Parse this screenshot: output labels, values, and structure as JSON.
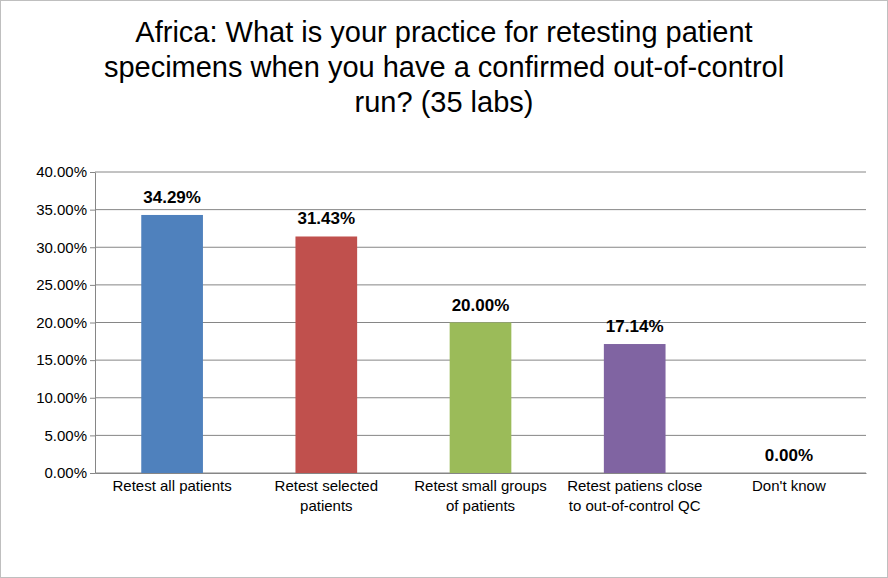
{
  "chart_data": {
    "type": "bar",
    "title": "Africa: What is your practice for retesting patient specimens when you have a confirmed out-of-control run? (35 labs)",
    "categories": [
      "Retest all patients",
      "Retest selected patients",
      "Retest small groups of patients",
      "Retest patiens close to out-of-control QC",
      "Don't know"
    ],
    "values": [
      34.29,
      31.43,
      20.0,
      17.14,
      0.0
    ],
    "value_labels": [
      "34.29%",
      "31.43%",
      "20.00%",
      "17.14%",
      "0.00%"
    ],
    "colors": [
      "#4f81bd",
      "#c0504d",
      "#9bbb59",
      "#8064a2",
      "#4bacc6"
    ],
    "ylim": [
      0,
      40
    ],
    "yticks": [
      {
        "value": 0,
        "label": "0.00%"
      },
      {
        "value": 5,
        "label": "5.00%"
      },
      {
        "value": 10,
        "label": "10.00%"
      },
      {
        "value": 15,
        "label": "15.00%"
      },
      {
        "value": 20,
        "label": "20.00%"
      },
      {
        "value": 25,
        "label": "25.00%"
      },
      {
        "value": 30,
        "label": "30.00%"
      },
      {
        "value": 35,
        "label": "35.00%"
      },
      {
        "value": 40,
        "label": "40.00%"
      }
    ],
    "grid": true,
    "data_labels": true
  }
}
